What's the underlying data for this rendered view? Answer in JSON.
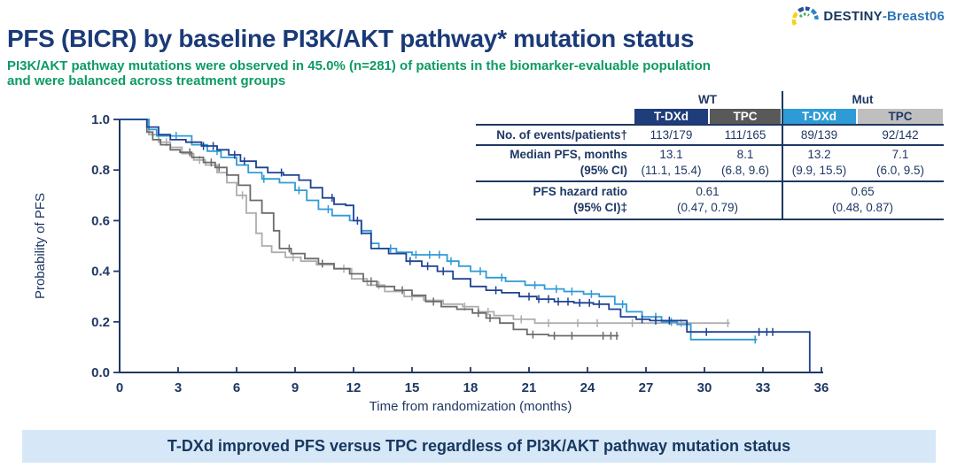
{
  "logo": {
    "text_primary": "DESTINY",
    "text_secondary": "-Breast06"
  },
  "header": {
    "title": "PFS (BICR) by baseline PI3K/AKT pathway* mutation status",
    "subtitle_line1": "PI3K/AKT pathway mutations were observed in 45.0% (n=281) of patients in the biomarker-evaluable population",
    "subtitle_line2": "and were balanced across treatment groups"
  },
  "table": {
    "group_headers": [
      "WT",
      "Mut"
    ],
    "col_headers": [
      "T-DXd",
      "TPC",
      "T-DXd",
      "TPC"
    ],
    "rows": {
      "events": {
        "label": "No. of events/patients†",
        "values": [
          "113/179",
          "111/165",
          "89/139",
          "92/142"
        ]
      },
      "median": {
        "label1": "Median PFS, months",
        "label2": "(95% CI)",
        "values": [
          "13.1",
          "8.1",
          "13.2",
          "7.1"
        ],
        "cis": [
          "(11.1, 15.4)",
          "(6.8, 9.6)",
          "(9.9, 15.5)",
          "(6.0, 9.5)"
        ]
      },
      "hr": {
        "label1": "PFS hazard ratio",
        "label2": "(95% CI)‡",
        "values": [
          "0.61",
          "0.65"
        ],
        "cis": [
          "(0.47, 0.79)",
          "(0.48, 0.87)"
        ]
      }
    }
  },
  "banner": {
    "text": "T-DXd improved PFS versus TPC regardless of PI3K/AKT pathway mutation status"
  },
  "colors": {
    "navy_text": "#1F3864",
    "title_blue": "#1A3A78",
    "subtitle_green": "#0D9B64",
    "wt_tdxd": "#1E4293",
    "wt_tpc": "#6B6B6B",
    "mut_tdxd": "#2E9BD6",
    "mut_tpc": "#ADADAD",
    "banner_bg": "#D6E7F7"
  },
  "chart_data": {
    "type": "line",
    "subtype": "kaplan-meier-step",
    "title": "",
    "xlabel": "Time from randomization (months)",
    "ylabel": "Probability of PFS",
    "xlim": [
      0,
      36
    ],
    "ylim": [
      0.0,
      1.0
    ],
    "xticks": [
      0,
      3,
      6,
      9,
      12,
      15,
      18,
      21,
      24,
      27,
      30,
      33,
      36
    ],
    "yticks": [
      0.0,
      0.2,
      0.4,
      0.6,
      0.8,
      1.0
    ],
    "grid": false,
    "legend_position": "none (see table)",
    "series": [
      {
        "name": "TPC (Mut)",
        "color": "#ADADAD",
        "median_pfs_months": 7.1,
        "points": [
          [
            0,
            1.0
          ],
          [
            1.2,
            1.0
          ],
          [
            1.5,
            0.94
          ],
          [
            2.0,
            0.91
          ],
          [
            2.6,
            0.89
          ],
          [
            3.2,
            0.865
          ],
          [
            3.8,
            0.84
          ],
          [
            4.4,
            0.82
          ],
          [
            5.0,
            0.79
          ],
          [
            5.5,
            0.75
          ],
          [
            6.0,
            0.7
          ],
          [
            6.5,
            0.63
          ],
          [
            7.0,
            0.55
          ],
          [
            7.3,
            0.5
          ],
          [
            7.8,
            0.475
          ],
          [
            8.5,
            0.455
          ],
          [
            9.3,
            0.44
          ],
          [
            10.1,
            0.425
          ],
          [
            11.0,
            0.41
          ],
          [
            11.9,
            0.37
          ],
          [
            12.7,
            0.345
          ],
          [
            13.6,
            0.32
          ],
          [
            14.6,
            0.3
          ],
          [
            15.6,
            0.285
          ],
          [
            16.6,
            0.27
          ],
          [
            17.6,
            0.26
          ],
          [
            18.4,
            0.24
          ],
          [
            19.2,
            0.225
          ],
          [
            20.2,
            0.21
          ],
          [
            21.3,
            0.195
          ],
          [
            31.3,
            0.195
          ]
        ],
        "censors": [
          2.4,
          4.1,
          6.3,
          8.9,
          11.5,
          13.3,
          15.0,
          17.7,
          18.9,
          20.6,
          22.0,
          23.5,
          24.5,
          26.3,
          28.8,
          31.2
        ]
      },
      {
        "name": "TPC (WT)",
        "color": "#6B6B6B",
        "median_pfs_months": 8.1,
        "points": [
          [
            0,
            1.0
          ],
          [
            1.2,
            1.0
          ],
          [
            1.4,
            0.95
          ],
          [
            1.7,
            0.92
          ],
          [
            2.1,
            0.9
          ],
          [
            2.6,
            0.88
          ],
          [
            3.1,
            0.87
          ],
          [
            3.7,
            0.85
          ],
          [
            4.3,
            0.83
          ],
          [
            4.9,
            0.81
          ],
          [
            5.5,
            0.78
          ],
          [
            6.1,
            0.74
          ],
          [
            6.7,
            0.68
          ],
          [
            7.3,
            0.63
          ],
          [
            7.9,
            0.56
          ],
          [
            8.2,
            0.49
          ],
          [
            8.8,
            0.47
          ],
          [
            9.5,
            0.45
          ],
          [
            10.2,
            0.43
          ],
          [
            11.0,
            0.41
          ],
          [
            11.8,
            0.39
          ],
          [
            12.5,
            0.36
          ],
          [
            13.2,
            0.34
          ],
          [
            14.1,
            0.325
          ],
          [
            15.0,
            0.305
          ],
          [
            15.7,
            0.28
          ],
          [
            16.5,
            0.26
          ],
          [
            17.3,
            0.25
          ],
          [
            18.1,
            0.235
          ],
          [
            18.8,
            0.215
          ],
          [
            19.5,
            0.195
          ],
          [
            20.2,
            0.17
          ],
          [
            20.9,
            0.15
          ],
          [
            22.0,
            0.145
          ],
          [
            25.6,
            0.145
          ]
        ],
        "censors": [
          3.6,
          4.7,
          5.1,
          8.7,
          10.4,
          12.9,
          14.5,
          16.1,
          18.4,
          19.0,
          21.2,
          22.3,
          23.2,
          24.8,
          25.2,
          25.5
        ]
      },
      {
        "name": "T-DXd (Mut)",
        "color": "#2E9BD6",
        "median_pfs_months": 13.2,
        "points": [
          [
            0,
            1.0
          ],
          [
            1.3,
            1.0
          ],
          [
            1.5,
            0.96
          ],
          [
            1.9,
            0.935
          ],
          [
            3.7,
            0.9
          ],
          [
            4.5,
            0.875
          ],
          [
            5.2,
            0.85
          ],
          [
            6.0,
            0.82
          ],
          [
            6.6,
            0.79
          ],
          [
            7.3,
            0.765
          ],
          [
            8.2,
            0.75
          ],
          [
            9.0,
            0.72
          ],
          [
            9.6,
            0.68
          ],
          [
            10.2,
            0.645
          ],
          [
            10.9,
            0.62
          ],
          [
            11.8,
            0.6
          ],
          [
            12.4,
            0.56
          ],
          [
            12.9,
            0.51
          ],
          [
            13.3,
            0.49
          ],
          [
            14.2,
            0.475
          ],
          [
            15.0,
            0.465
          ],
          [
            16.8,
            0.44
          ],
          [
            17.4,
            0.42
          ],
          [
            18.0,
            0.4
          ],
          [
            18.8,
            0.375
          ],
          [
            19.8,
            0.36
          ],
          [
            20.8,
            0.345
          ],
          [
            21.8,
            0.33
          ],
          [
            22.8,
            0.32
          ],
          [
            23.8,
            0.31
          ],
          [
            24.6,
            0.3
          ],
          [
            25.4,
            0.27
          ],
          [
            26.0,
            0.24
          ],
          [
            26.8,
            0.22
          ],
          [
            27.8,
            0.2
          ],
          [
            28.6,
            0.19
          ],
          [
            29.3,
            0.13
          ],
          [
            32.7,
            0.13
          ]
        ],
        "censors": [
          2.9,
          5.0,
          7.4,
          9.2,
          10.7,
          12.4,
          13.9,
          15.2,
          15.9,
          16.4,
          17.0,
          18.5,
          19.6,
          21.3,
          22.4,
          23.2,
          24.2,
          25.8,
          27.5,
          28.3,
          32.6
        ]
      },
      {
        "name": "T-DXd (WT)",
        "color": "#1E4293",
        "median_pfs_months": 13.1,
        "points": [
          [
            0,
            1.0
          ],
          [
            1.2,
            1.0
          ],
          [
            1.4,
            0.97
          ],
          [
            2.0,
            0.94
          ],
          [
            2.6,
            0.92
          ],
          [
            3.4,
            0.91
          ],
          [
            4.2,
            0.895
          ],
          [
            5.0,
            0.88
          ],
          [
            5.6,
            0.86
          ],
          [
            6.2,
            0.835
          ],
          [
            7.0,
            0.81
          ],
          [
            7.6,
            0.79
          ],
          [
            8.4,
            0.78
          ],
          [
            9.2,
            0.76
          ],
          [
            9.8,
            0.73
          ],
          [
            10.4,
            0.69
          ],
          [
            11.0,
            0.665
          ],
          [
            11.6,
            0.66
          ],
          [
            12.0,
            0.6
          ],
          [
            12.4,
            0.55
          ],
          [
            12.9,
            0.49
          ],
          [
            13.8,
            0.47
          ],
          [
            14.7,
            0.44
          ],
          [
            15.5,
            0.42
          ],
          [
            16.3,
            0.4
          ],
          [
            17.1,
            0.37
          ],
          [
            18.0,
            0.34
          ],
          [
            18.8,
            0.325
          ],
          [
            19.6,
            0.315
          ],
          [
            20.5,
            0.3
          ],
          [
            21.4,
            0.29
          ],
          [
            22.3,
            0.28
          ],
          [
            23.3,
            0.275
          ],
          [
            24.3,
            0.27
          ],
          [
            25.1,
            0.25
          ],
          [
            25.7,
            0.22
          ],
          [
            26.5,
            0.21
          ],
          [
            27.2,
            0.205
          ],
          [
            29.1,
            0.16
          ],
          [
            35.4,
            0.16
          ],
          [
            35.4,
            0.0
          ]
        ],
        "censors": [
          4.3,
          4.8,
          5.9,
          6.4,
          8.3,
          10.9,
          12.2,
          14.9,
          15.8,
          16.6,
          19.3,
          21.0,
          21.5,
          22.0,
          22.5,
          23.0,
          23.6,
          24.1,
          24.6,
          26.8,
          27.5,
          28.2,
          30.1,
          32.8,
          33.2,
          33.5
        ]
      }
    ]
  }
}
